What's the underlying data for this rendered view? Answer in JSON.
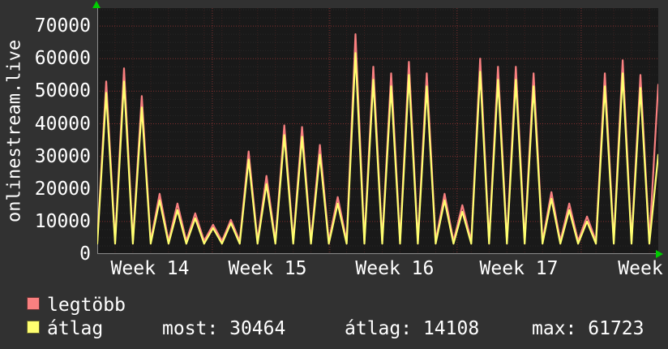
{
  "y_axis_title": "onlinestream.live",
  "chart_data": {
    "type": "line",
    "title": "onlinestream.live",
    "ylabel": "onlinestream.live",
    "xlabel": "",
    "ylim": [
      0,
      75500
    ],
    "y_ticks": [
      0,
      10000,
      20000,
      30000,
      40000,
      50000,
      60000,
      70000
    ],
    "x_ticks": [
      {
        "label": "Week 14",
        "pos": 2.96
      },
      {
        "label": "Week 15",
        "pos": 9.56
      },
      {
        "label": "Week 16",
        "pos": 16.7
      },
      {
        "label": "Week 17",
        "pos": 23.67
      },
      {
        "label": "Week",
        "pos": 30.5
      }
    ],
    "week_boundaries": [
      6.46,
      13.06,
      20.2,
      27.17
    ],
    "x_span_days": 31.5,
    "grid": {
      "major_color": "rgba(255,75,75,0.45)",
      "minor_v_color": "rgba(255,75,75,0.16)",
      "minor_h_color": "rgba(180,180,180,0.10)",
      "axis_color": "#8a8a8a",
      "arrow_color": "#00cc00"
    },
    "series": [
      {
        "name": "legtöbb",
        "color": "#f98080",
        "baseline": 4000,
        "daily_peaks": [
          53000,
          57000,
          48500,
          18500,
          15500,
          12500,
          9000,
          10500,
          31500,
          24000,
          39500,
          39000,
          33500,
          17500,
          67500,
          57500,
          55500,
          59000,
          55500,
          18500,
          15000,
          60000,
          57500,
          57500,
          55500,
          19000,
          15500,
          11500,
          55500,
          59500,
          55000,
          52000
        ]
      },
      {
        "name": "átlag",
        "color": "#ffff70",
        "baseline": 3200,
        "daily_peaks": [
          49500,
          53000,
          45000,
          16500,
          13500,
          11000,
          8000,
          9500,
          29000,
          21500,
          36500,
          36000,
          30500,
          15500,
          61723,
          53500,
          51500,
          55000,
          51500,
          16500,
          13000,
          56000,
          53500,
          53500,
          51500,
          17000,
          13500,
          10000,
          51500,
          55500,
          51000,
          30464
        ]
      }
    ]
  },
  "legend": {
    "items": [
      {
        "label": "legtöbb",
        "color": "#f98080"
      },
      {
        "label": "átlag",
        "color": "#ffff70"
      }
    ],
    "stats": [
      {
        "label": "most:",
        "value": "30464"
      },
      {
        "label": "átlag:",
        "value": "14108"
      },
      {
        "label": "max:",
        "value": "61723"
      }
    ]
  }
}
